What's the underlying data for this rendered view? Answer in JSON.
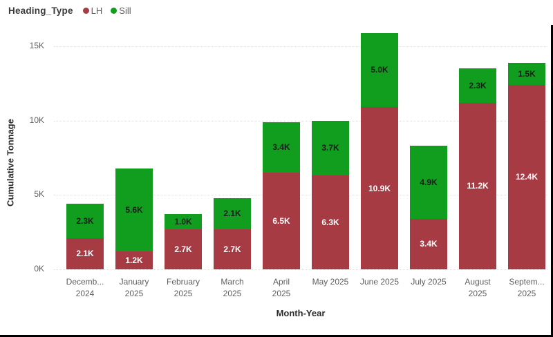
{
  "legend": {
    "title": "Heading_Type",
    "items": [
      {
        "label": "LH",
        "color": "#a73b43"
      },
      {
        "label": "Sill",
        "color": "#119e1e"
      }
    ]
  },
  "y_axis": {
    "title": "Cumulative Tonnage",
    "tick_labels": [
      "0K",
      "5K",
      "10K",
      "15K"
    ]
  },
  "x_axis": {
    "title": "Month-Year"
  },
  "chart_data": {
    "type": "bar",
    "stacked": true,
    "title": "",
    "xlabel": "Month-Year",
    "ylabel": "Cumulative Tonnage",
    "ylim": [
      0,
      16
    ],
    "yticks": [
      0,
      5,
      10,
      15
    ],
    "ytick_labels": [
      "0K",
      "5K",
      "10K",
      "15K"
    ],
    "grid": "dotted horizontal",
    "legend_position": "top-left",
    "categories": [
      "December 2024",
      "January 2025",
      "February 2025",
      "March 2025",
      "April 2025",
      "May 2025",
      "June 2025",
      "July 2025",
      "August 2025",
      "September 2025"
    ],
    "category_display_lines": [
      [
        "Decemb...",
        "2024"
      ],
      [
        "January",
        "2025"
      ],
      [
        "February",
        "2025"
      ],
      [
        "March",
        "2025"
      ],
      [
        "April",
        "2025"
      ],
      [
        "May 2025"
      ],
      [
        "June 2025"
      ],
      [
        "July 2025"
      ],
      [
        "August",
        "2025"
      ],
      [
        "Septem...",
        "2025"
      ]
    ],
    "series": [
      {
        "name": "LH",
        "color": "#a73b43",
        "label_color": "#ffffff",
        "values": [
          2.1,
          1.2,
          2.7,
          2.7,
          6.5,
          6.3,
          10.9,
          3.4,
          11.2,
          12.4
        ],
        "labels": [
          "2.1K",
          "1.2K",
          "2.7K",
          "2.7K",
          "6.5K",
          "6.3K",
          "10.9K",
          "3.4K",
          "11.2K",
          "12.4K"
        ]
      },
      {
        "name": "Sill",
        "color": "#119e1e",
        "label_color": "#1c1c1c",
        "values": [
          2.3,
          5.6,
          1.0,
          2.1,
          3.4,
          3.7,
          5.0,
          4.9,
          2.3,
          1.5
        ],
        "labels": [
          "2.3K",
          "5.6K",
          "1.0K",
          "2.1K",
          "3.4K",
          "3.7K",
          "5.0K",
          "4.9K",
          "2.3K",
          "1.5K"
        ]
      }
    ],
    "totals": [
      4.4,
      6.8,
      3.7,
      4.8,
      9.9,
      10.0,
      15.9,
      8.3,
      13.5,
      13.9
    ]
  }
}
